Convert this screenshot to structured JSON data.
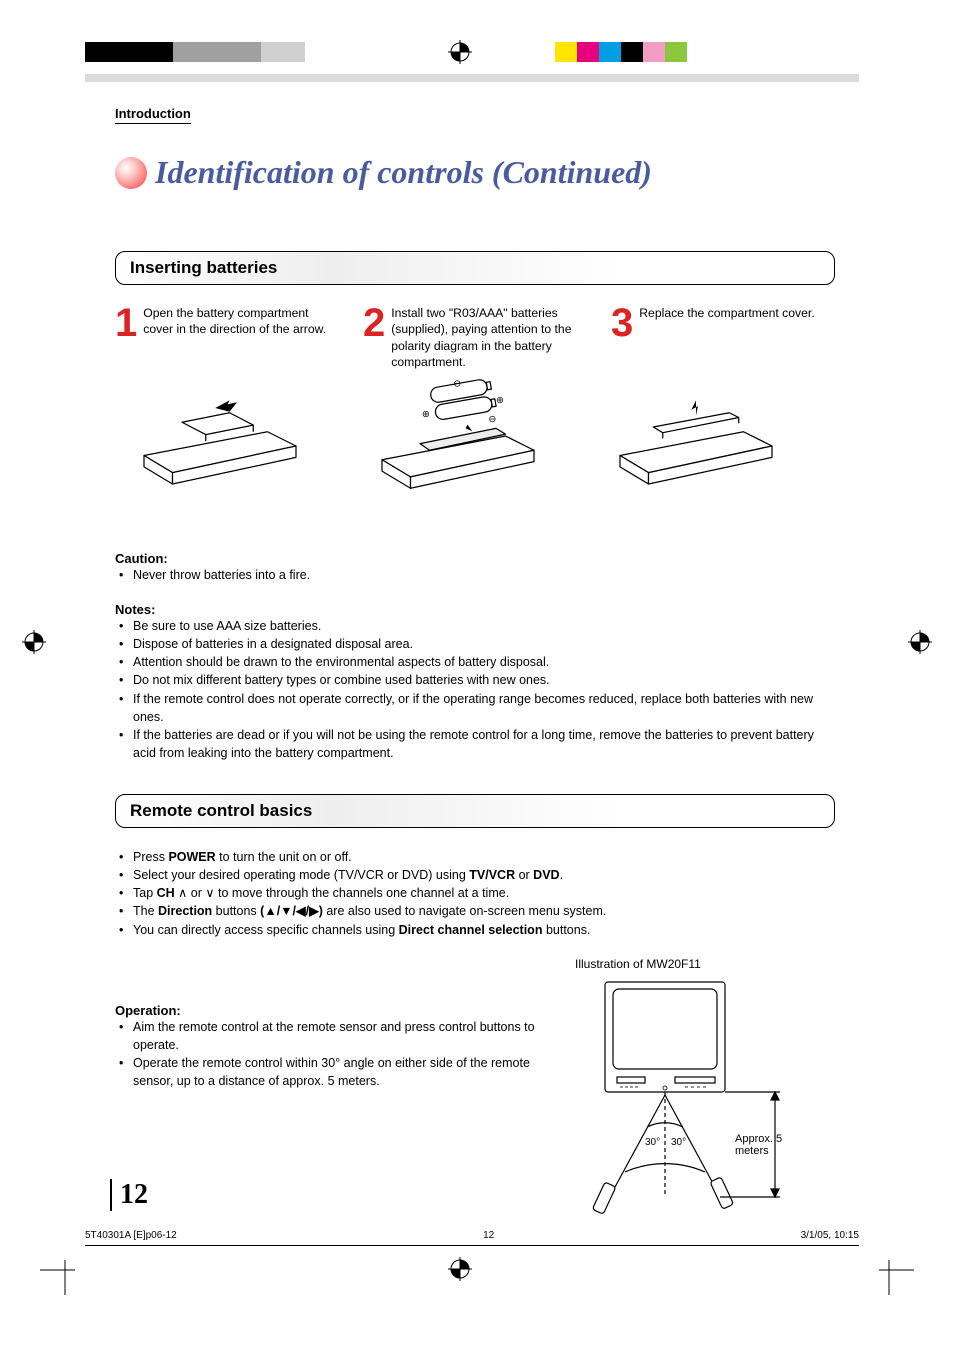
{
  "colors": {
    "left_strip": [
      "#000000",
      "#000000",
      "#000000",
      "#000000",
      "#a0a0a0",
      "#a0a0a0",
      "#a0a0a0",
      "#a0a0a0",
      "#d0d0d0",
      "#d0d0d0"
    ],
    "right_strip": [
      "#ffe600",
      "#e6007e",
      "#009fe3",
      "#000000",
      "#f29ec4",
      "#8cc63f"
    ]
  },
  "header": {
    "section": "Introduction",
    "title": "Identification of controls (Continued)"
  },
  "inserting": {
    "heading": "Inserting batteries",
    "steps": [
      {
        "num": "1",
        "text": "Open the battery compartment cover in the direction of the arrow."
      },
      {
        "num": "2",
        "text": "Install two \"R03/AAA\" batteries (supplied), paying attention to the polarity diagram in the battery compartment."
      },
      {
        "num": "3",
        "text": "Replace the compartment cover."
      }
    ],
    "caution_label": "Caution:",
    "caution_items": [
      "Never throw batteries into a fire."
    ],
    "notes_label": "Notes:",
    "notes_items": [
      "Be sure to use AAA size batteries.",
      "Dispose of batteries in a designated disposal area.",
      "Attention should be drawn to the environmental aspects of battery disposal.",
      "Do not mix different battery types or combine used batteries with new ones.",
      "If the remote control does not operate correctly, or if the operating range becomes reduced, replace both batteries with new ones.",
      "If the batteries are dead or if you will not be using the remote control for a long time, remove the batteries to prevent battery acid from leaking into the battery compartment."
    ]
  },
  "remote": {
    "heading": "Remote control basics",
    "basics": [
      "Press <b>POWER</b> to turn the unit on or off.",
      "Select your desired operating mode (TV/VCR or DVD) using <b>TV/VCR</b> or <b>DVD</b>.",
      "Tap <b>CH</b> ∧ or ∨ to move through the channels one channel at a time.",
      "The <b>Direction</b> buttons <b>(▲/▼/◀/▶)</b> are also used to navigate on-screen menu system.",
      "You can directly access specific channels using <b>Direct channel selection</b> buttons."
    ],
    "operation_label": "Operation:",
    "operation_items": [
      "Aim the remote control at the remote sensor and press control buttons to operate.",
      "Operate the remote control within 30° angle on either side of the remote sensor, up to a distance of approx. 5 meters."
    ],
    "illustration_label": "Illustration of MW20F11",
    "distance_label": "Approx. 5 meters",
    "angle_left": "30°",
    "angle_right": "30°"
  },
  "footer": {
    "page_num": "12",
    "doc_id": "5T40301A [E]p06-12",
    "sheet": "12",
    "date": "3/1/05, 10:15"
  }
}
